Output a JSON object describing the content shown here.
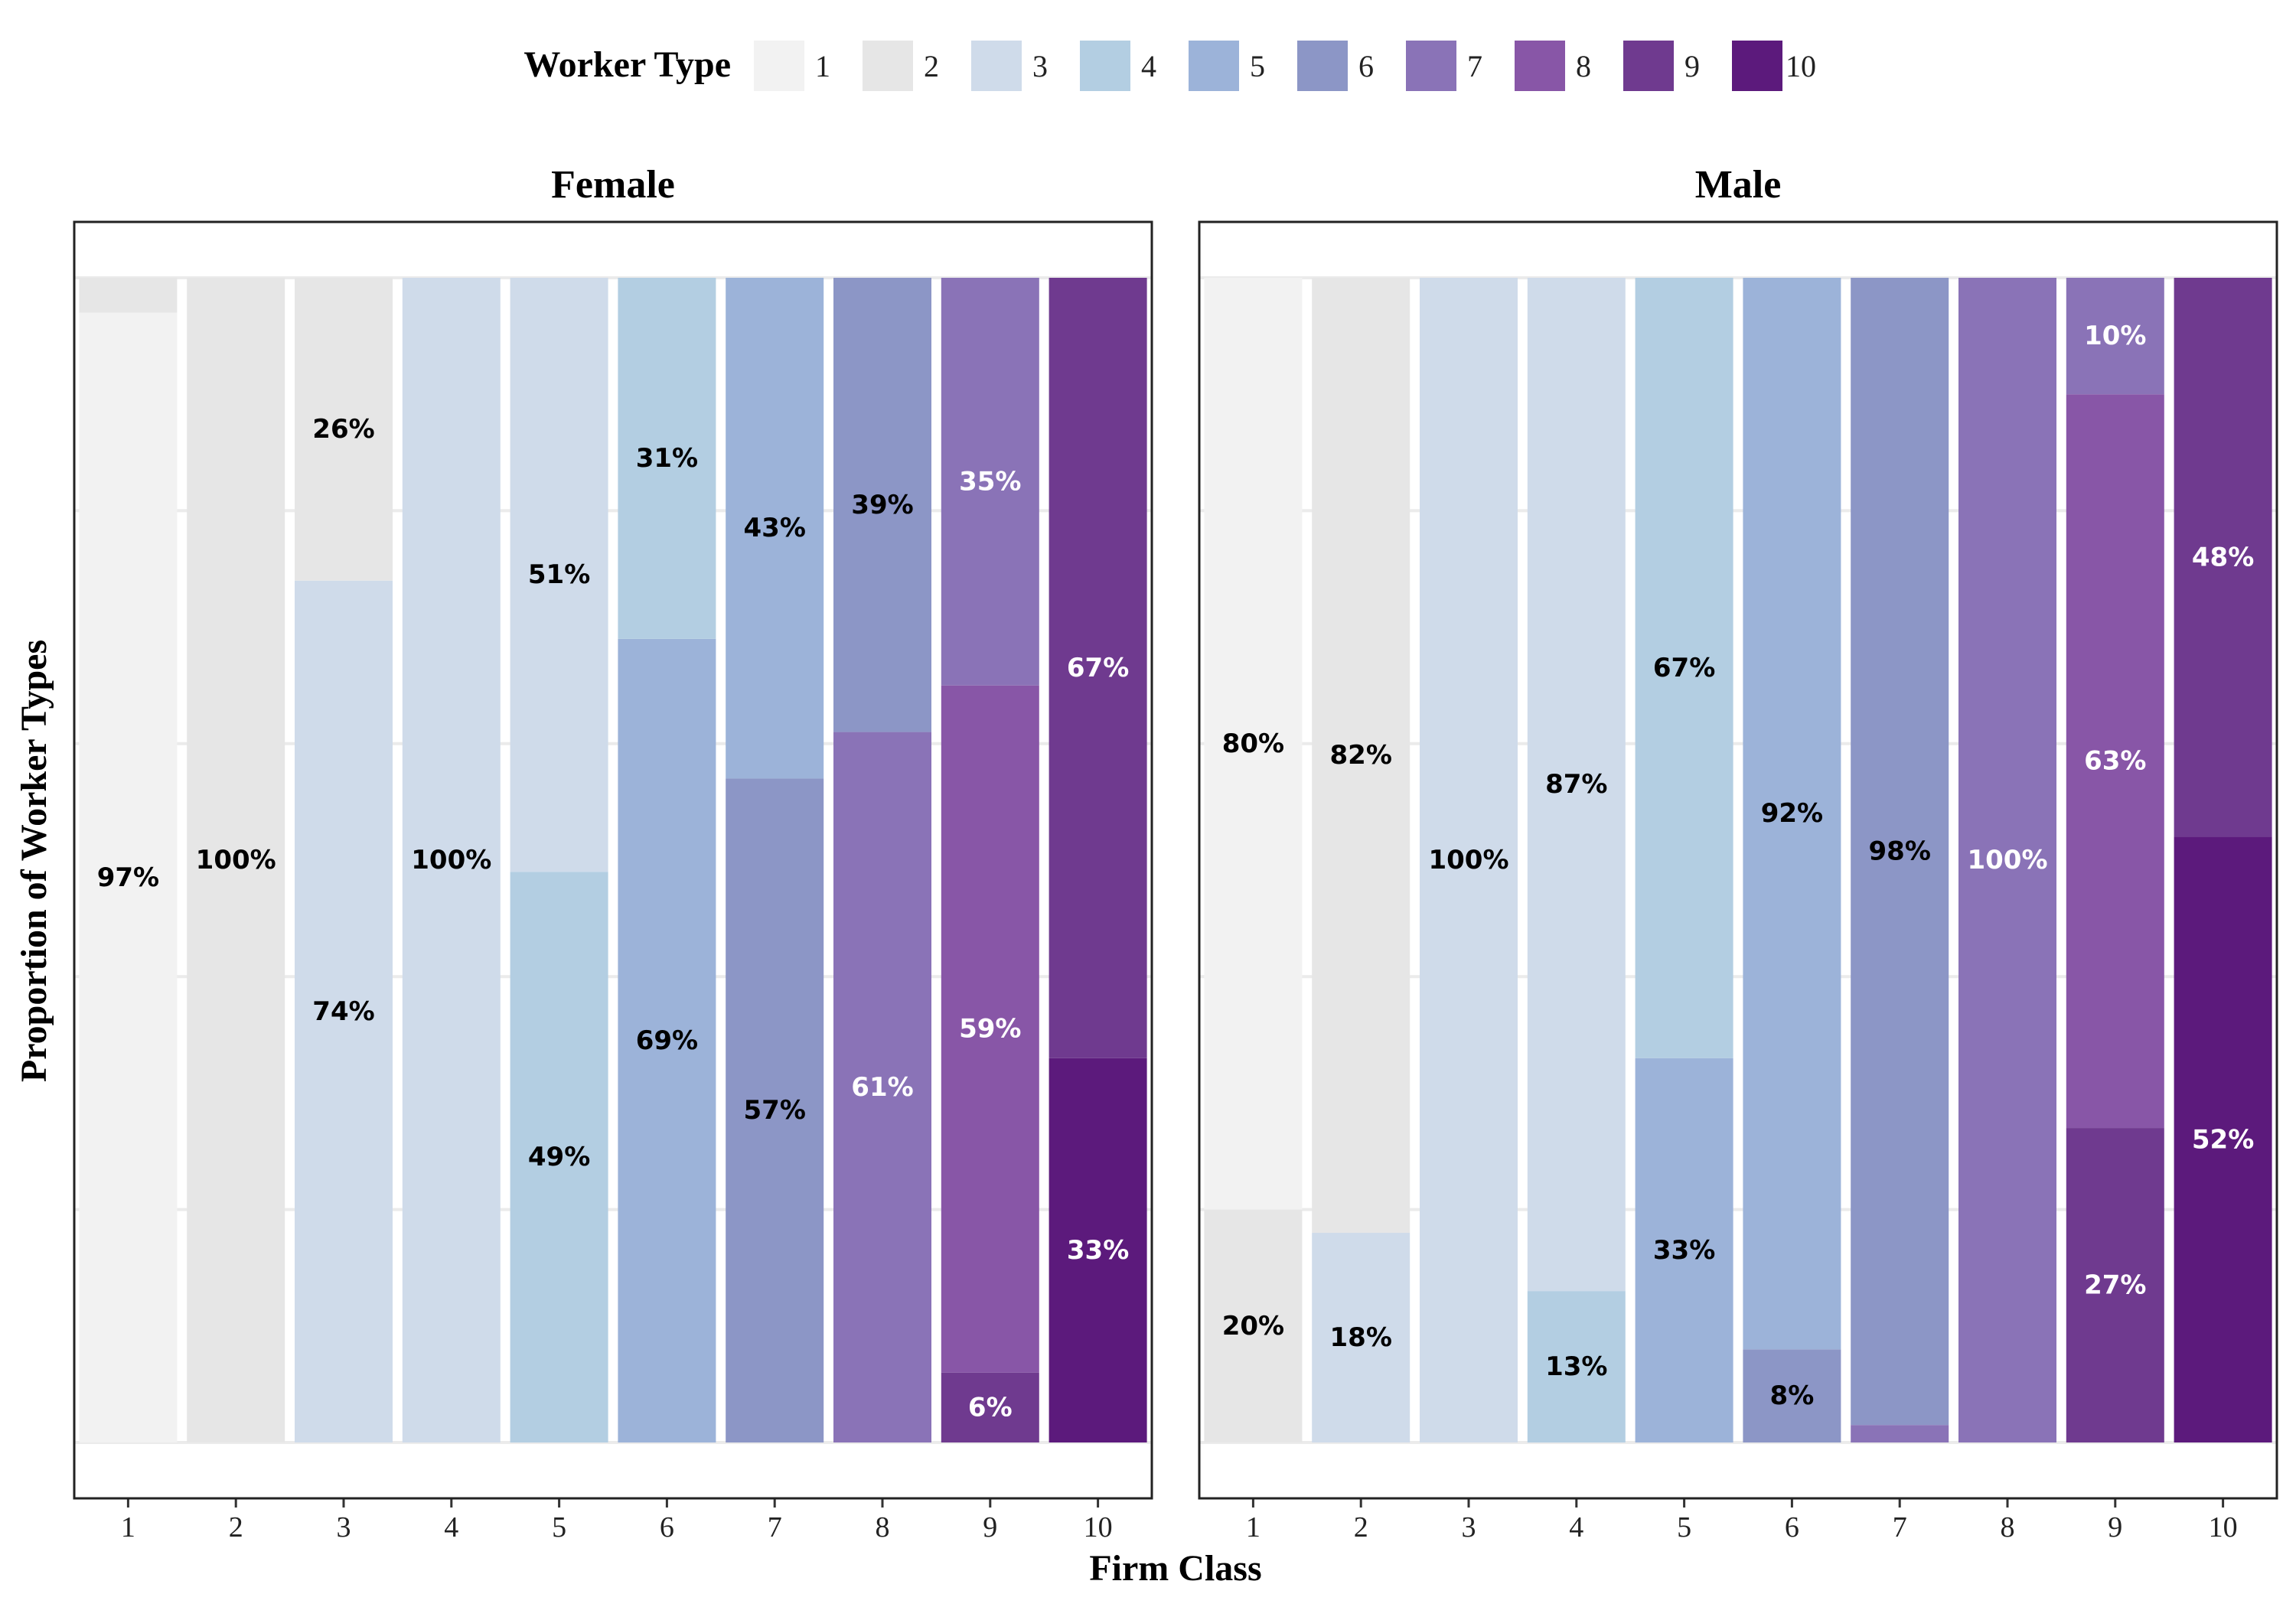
{
  "chart_data": {
    "type": "bar",
    "stacked": true,
    "normalized": true,
    "xlabel": "Firm Class",
    "ylabel": "Proportion of Worker Types",
    "ylim": [
      0,
      1
    ],
    "legend": {
      "title": "Worker Type",
      "position": "top",
      "entries": [
        "1",
        "2",
        "3",
        "4",
        "5",
        "6",
        "7",
        "8",
        "9",
        "10"
      ]
    },
    "colors": [
      "#f2f2f2",
      "#e6e6e6",
      "#cfdbea",
      "#b3cee2",
      "#9cb3d9",
      "#8c96c6",
      "#8a73b7",
      "#8856a7",
      "#6f3a8f",
      "#5c1a7c"
    ],
    "label_text_colors": [
      "#000000",
      "#000000",
      "#000000",
      "#000000",
      "#000000",
      "#000000",
      "#ffffff",
      "#ffffff",
      "#ffffff",
      "#ffffff"
    ],
    "facets": [
      {
        "title": "Female",
        "categories": [
          "1",
          "2",
          "3",
          "4",
          "5",
          "6",
          "7",
          "8",
          "9",
          "10"
        ],
        "stacks": [
          [
            {
              "type": 1,
              "value": 0.97,
              "label": "97%"
            },
            {
              "type": 2,
              "value": 0.03,
              "label": ""
            }
          ],
          [
            {
              "type": 2,
              "value": 1.0,
              "label": "100%"
            }
          ],
          [
            {
              "type": 3,
              "value": 0.74,
              "label": "74%"
            },
            {
              "type": 2,
              "value": 0.26,
              "label": "26%"
            }
          ],
          [
            {
              "type": 3,
              "value": 1.0,
              "label": "100%"
            }
          ],
          [
            {
              "type": 4,
              "value": 0.49,
              "label": "49%"
            },
            {
              "type": 3,
              "value": 0.51,
              "label": "51%"
            }
          ],
          [
            {
              "type": 5,
              "value": 0.69,
              "label": "69%"
            },
            {
              "type": 4,
              "value": 0.31,
              "label": "31%"
            }
          ],
          [
            {
              "type": 6,
              "value": 0.57,
              "label": "57%"
            },
            {
              "type": 5,
              "value": 0.43,
              "label": "43%"
            }
          ],
          [
            {
              "type": 7,
              "value": 0.61,
              "label": "61%"
            },
            {
              "type": 6,
              "value": 0.39,
              "label": "39%"
            }
          ],
          [
            {
              "type": 9,
              "value": 0.06,
              "label": "6%"
            },
            {
              "type": 8,
              "value": 0.59,
              "label": "59%"
            },
            {
              "type": 7,
              "value": 0.35,
              "label": "35%"
            }
          ],
          [
            {
              "type": 10,
              "value": 0.33,
              "label": "33%"
            },
            {
              "type": 9,
              "value": 0.67,
              "label": "67%"
            }
          ]
        ]
      },
      {
        "title": "Male",
        "categories": [
          "1",
          "2",
          "3",
          "4",
          "5",
          "6",
          "7",
          "8",
          "9",
          "10"
        ],
        "stacks": [
          [
            {
              "type": 2,
              "value": 0.2,
              "label": "20%"
            },
            {
              "type": 1,
              "value": 0.8,
              "label": "80%"
            }
          ],
          [
            {
              "type": 3,
              "value": 0.18,
              "label": "18%"
            },
            {
              "type": 2,
              "value": 0.82,
              "label": "82%"
            }
          ],
          [
            {
              "type": 3,
              "value": 1.0,
              "label": "100%"
            }
          ],
          [
            {
              "type": 4,
              "value": 0.13,
              "label": "13%"
            },
            {
              "type": 3,
              "value": 0.87,
              "label": "87%"
            }
          ],
          [
            {
              "type": 5,
              "value": 0.33,
              "label": "33%"
            },
            {
              "type": 4,
              "value": 0.67,
              "label": "67%"
            }
          ],
          [
            {
              "type": 6,
              "value": 0.08,
              "label": "8%"
            },
            {
              "type": 5,
              "value": 0.92,
              "label": "92%"
            }
          ],
          [
            {
              "type": 7,
              "value": 0.015,
              "label": ""
            },
            {
              "type": 6,
              "value": 0.985,
              "label": "98%"
            }
          ],
          [
            {
              "type": 7,
              "value": 1.0,
              "label": "100%"
            }
          ],
          [
            {
              "type": 9,
              "value": 0.27,
              "label": "27%"
            },
            {
              "type": 8,
              "value": 0.63,
              "label": "63%"
            },
            {
              "type": 7,
              "value": 0.1,
              "label": "10%"
            }
          ],
          [
            {
              "type": 10,
              "value": 0.52,
              "label": "52%"
            },
            {
              "type": 9,
              "value": 0.48,
              "label": "48%"
            }
          ]
        ]
      }
    ]
  }
}
